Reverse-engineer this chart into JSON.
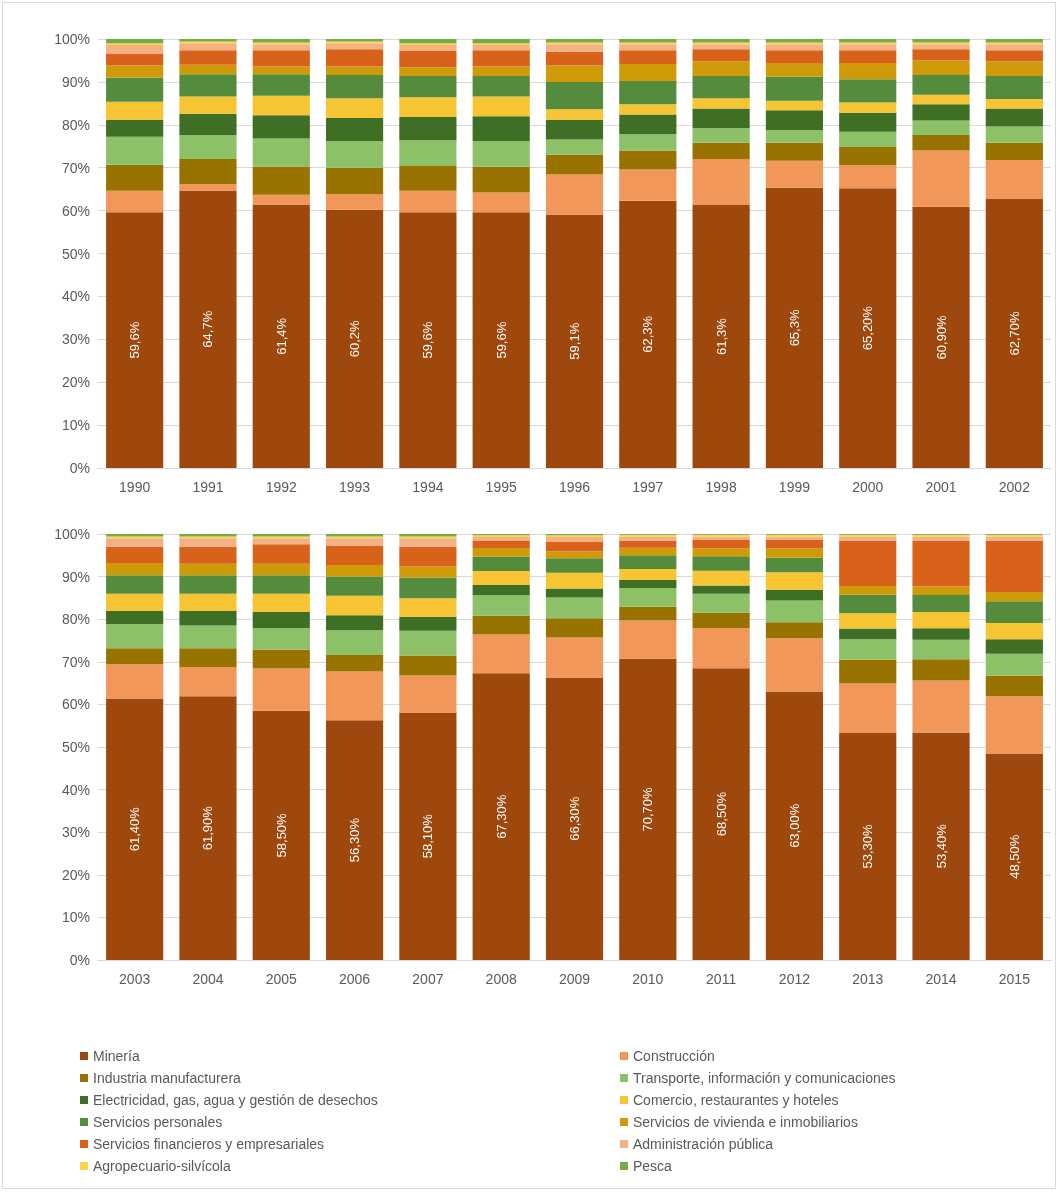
{
  "chart_data": [
    {
      "type": "bar",
      "stacked": true,
      "categories": [
        "1990",
        "1991",
        "1992",
        "1993",
        "1994",
        "1995",
        "1996",
        "1997",
        "1998",
        "1999",
        "2000",
        "2001",
        "2002"
      ],
      "ylim": [
        0,
        100
      ],
      "yticks": [
        {
          "value": 0,
          "label": "0%"
        },
        {
          "value": 10,
          "label": "10%"
        },
        {
          "value": 20,
          "label": "20%"
        },
        {
          "value": 30,
          "label": "30%"
        },
        {
          "value": 40,
          "label": "40%"
        },
        {
          "value": 50,
          "label": "50%"
        },
        {
          "value": 60,
          "label": "60%"
        },
        {
          "value": 70,
          "label": "70%"
        },
        {
          "value": 80,
          "label": "80%"
        },
        {
          "value": 90,
          "label": "90%"
        },
        {
          "value": 100,
          "label": "100%"
        }
      ],
      "grid": "y",
      "series": [
        {
          "color": "#9e480e",
          "values": [
            59.6,
            64.7,
            61.4,
            60.2,
            59.6,
            59.6,
            59.1,
            62.3,
            61.3,
            65.3,
            65.2,
            60.9,
            62.7
          ],
          "value_labels": [
            "59,6%",
            "64,7%",
            "61,4%",
            "60,2%",
            "59,6%",
            "59,6%",
            "59,1%",
            "62,3%",
            "61,3%",
            "65,3%",
            "65,20%",
            "60,90%",
            "62,70%"
          ]
        },
        {
          "color": "#f1975a",
          "values": [
            5.0,
            1.5,
            2.3,
            3.6,
            5.0,
            4.6,
            9.3,
            7.3,
            10.7,
            6.3,
            5.4,
            13.1,
            9.1
          ]
        },
        {
          "color": "#997300",
          "values": [
            6.1,
            5.8,
            6.6,
            6.2,
            5.8,
            6.0,
            4.6,
            4.4,
            3.8,
            4.2,
            4.2,
            3.6,
            4.0
          ]
        },
        {
          "color": "#8cc168",
          "values": [
            6.5,
            5.6,
            6.5,
            6.2,
            6.0,
            6.0,
            3.6,
            3.8,
            3.4,
            3.0,
            3.6,
            3.4,
            3.8
          ]
        },
        {
          "color": "#3f6e25",
          "values": [
            4.0,
            5.0,
            5.4,
            5.4,
            5.4,
            5.8,
            4.6,
            4.6,
            4.6,
            4.6,
            4.4,
            3.8,
            4.2
          ]
        },
        {
          "color": "#f7c533",
          "values": [
            4.2,
            4.0,
            4.6,
            4.6,
            4.6,
            4.6,
            2.4,
            2.4,
            2.4,
            2.2,
            2.4,
            2.2,
            2.2
          ]
        },
        {
          "color": "#548b3c",
          "values": [
            5.6,
            5.2,
            5.0,
            5.4,
            5.0,
            4.8,
            6.4,
            5.4,
            5.2,
            5.6,
            5.4,
            4.6,
            5.4
          ]
        },
        {
          "color": "#cf9a08",
          "values": [
            2.8,
            2.2,
            1.8,
            2.0,
            2.0,
            2.2,
            3.8,
            4.0,
            3.4,
            3.2,
            3.8,
            3.4,
            3.4
          ]
        },
        {
          "color": "#d9621a",
          "values": [
            2.8,
            3.4,
            3.8,
            4.0,
            3.8,
            3.8,
            3.2,
            3.2,
            2.8,
            3.0,
            3.0,
            2.6,
            2.6
          ]
        },
        {
          "color": "#f4b183",
          "values": [
            2.0,
            1.6,
            1.4,
            1.4,
            1.4,
            1.2,
            1.8,
            1.4,
            1.2,
            1.4,
            1.4,
            1.2,
            1.4
          ]
        },
        {
          "color": "#ffd34d",
          "values": [
            0.4,
            0.4,
            0.4,
            0.4,
            0.4,
            0.4,
            0.4,
            0.4,
            0.4,
            0.4,
            0.4,
            0.4,
            0.4
          ]
        },
        {
          "color": "#70ad47",
          "values": [
            1.0,
            0.6,
            0.8,
            0.6,
            1.0,
            1.0,
            0.8,
            0.8,
            0.8,
            0.8,
            0.8,
            0.8,
            0.8
          ]
        }
      ]
    },
    {
      "type": "bar",
      "stacked": true,
      "categories": [
        "2003",
        "2004",
        "2005",
        "2006",
        "2007",
        "2008",
        "2009",
        "2010",
        "2011",
        "2012",
        "2013",
        "2014",
        "2015"
      ],
      "ylim": [
        0,
        100
      ],
      "yticks": [
        {
          "value": 0,
          "label": "0%"
        },
        {
          "value": 10,
          "label": "10%"
        },
        {
          "value": 20,
          "label": "20%"
        },
        {
          "value": 30,
          "label": "30%"
        },
        {
          "value": 40,
          "label": "40%"
        },
        {
          "value": 50,
          "label": "50%"
        },
        {
          "value": 60,
          "label": "60%"
        },
        {
          "value": 70,
          "label": "70%"
        },
        {
          "value": 80,
          "label": "80%"
        },
        {
          "value": 90,
          "label": "90%"
        },
        {
          "value": 100,
          "label": "100%"
        }
      ],
      "grid": "y",
      "legend": "bottom",
      "series": [
        {
          "name": "Minería",
          "color": "#9e480e",
          "values": [
            61.4,
            61.9,
            58.5,
            56.3,
            58.1,
            67.3,
            66.3,
            70.7,
            68.5,
            63.0,
            53.3,
            53.4,
            48.5
          ],
          "value_labels": [
            "61,40%",
            "61,90%",
            "58,50%",
            "56,30%",
            "58,10%",
            "67,30%",
            "66,30%",
            "70,70%",
            "68,50%",
            "63,00%",
            "53,30%",
            "53,40%",
            "48,50%"
          ]
        },
        {
          "name": "Construcción",
          "color": "#f1975a",
          "values": [
            8.0,
            6.9,
            9.9,
            11.4,
            8.7,
            9.1,
            9.4,
            9.0,
            9.4,
            12.5,
            11.6,
            12.2,
            13.4
          ]
        },
        {
          "name": "Industria manufacturera",
          "color": "#997300",
          "values": [
            3.8,
            4.4,
            4.4,
            3.9,
            4.7,
            4.4,
            4.5,
            3.2,
            3.6,
            3.8,
            5.6,
            5.0,
            4.8
          ]
        },
        {
          "name": "Transporte, información y comunicaciones",
          "color": "#8cc168",
          "values": [
            5.7,
            5.3,
            5.1,
            5.8,
            5.8,
            4.8,
            4.9,
            4.4,
            4.5,
            5.1,
            4.8,
            4.6,
            5.2
          ]
        },
        {
          "name": "Electricidad, gas, agua y gestión de desechos",
          "color": "#3f6e25",
          "values": [
            3.0,
            3.4,
            3.8,
            3.5,
            3.3,
            2.4,
            2.1,
            1.9,
            1.9,
            2.5,
            2.5,
            2.7,
            3.4
          ]
        },
        {
          "name": "Comercio, restaurantes y hoteles",
          "color": "#f7c533",
          "values": [
            4.1,
            4.1,
            4.3,
            4.6,
            4.3,
            3.3,
            3.7,
            2.6,
            3.5,
            4.1,
            3.6,
            3.8,
            3.8
          ]
        },
        {
          "name": "Servicios personales",
          "color": "#548b3c",
          "values": [
            4.3,
            4.3,
            4.3,
            4.5,
            4.9,
            3.4,
            3.4,
            3.2,
            3.4,
            3.4,
            4.4,
            4.0,
            5.1
          ]
        },
        {
          "name": "Servicios de vivienda e inmobiliarios",
          "color": "#cf9a08",
          "values": [
            2.9,
            2.7,
            2.7,
            2.7,
            2.6,
            2.0,
            1.6,
            1.8,
            1.8,
            2.2,
            2.0,
            2.0,
            2.2
          ]
        },
        {
          "name": "Servicios financieros y empresariales",
          "color": "#d9621a",
          "values": [
            3.8,
            4.0,
            4.6,
            4.6,
            4.6,
            1.8,
            2.2,
            1.6,
            2.0,
            2.0,
            10.6,
            10.7,
            12.0
          ]
        },
        {
          "name": "Administración pública",
          "color": "#f4b183",
          "values": [
            2.0,
            2.0,
            1.4,
            1.7,
            2.0,
            0.8,
            1.2,
            1.0,
            0.8,
            0.8,
            1.0,
            1.0,
            1.0
          ]
        },
        {
          "name": "Agropecuario-silvícola",
          "color": "#ffd34d",
          "values": [
            0.4,
            0.4,
            0.4,
            0.4,
            0.4,
            0.4,
            0.4,
            0.4,
            0.4,
            0.4,
            0.4,
            0.4,
            0.4
          ]
        },
        {
          "name": "Pesca",
          "color": "#70ad47",
          "values": [
            0.6,
            0.6,
            0.6,
            0.6,
            0.6,
            0.4,
            0.4,
            0.6,
            0.6,
            0.6,
            0.6,
            0.6,
            0.6
          ]
        }
      ]
    }
  ]
}
